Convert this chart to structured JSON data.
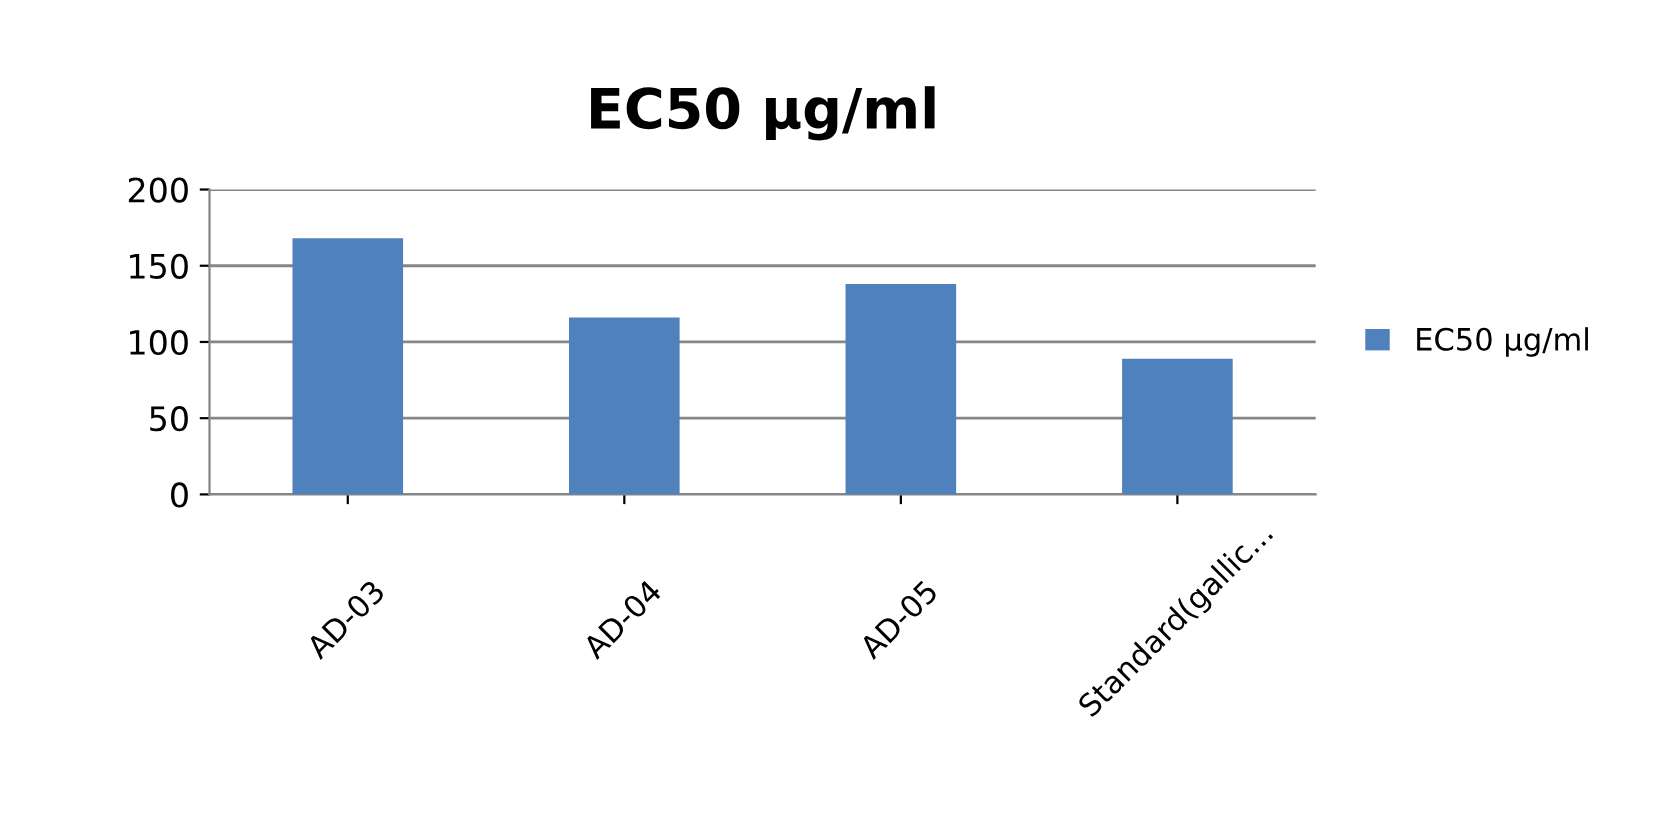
{
  "chart_data": {
    "type": "bar",
    "title": "EC50 µg/ml",
    "categories": [
      "AD-03",
      "AD-04",
      "AD-05",
      "Standard(gallic..."
    ],
    "series": [
      {
        "name": "EC50 µg/ml",
        "color": "#4f81bd",
        "values": [
          168,
          116,
          138,
          89
        ]
      }
    ],
    "ylim": [
      0,
      200
    ],
    "yticks": [
      0,
      50,
      100,
      150,
      200
    ],
    "grid": "y",
    "legend": "right"
  }
}
